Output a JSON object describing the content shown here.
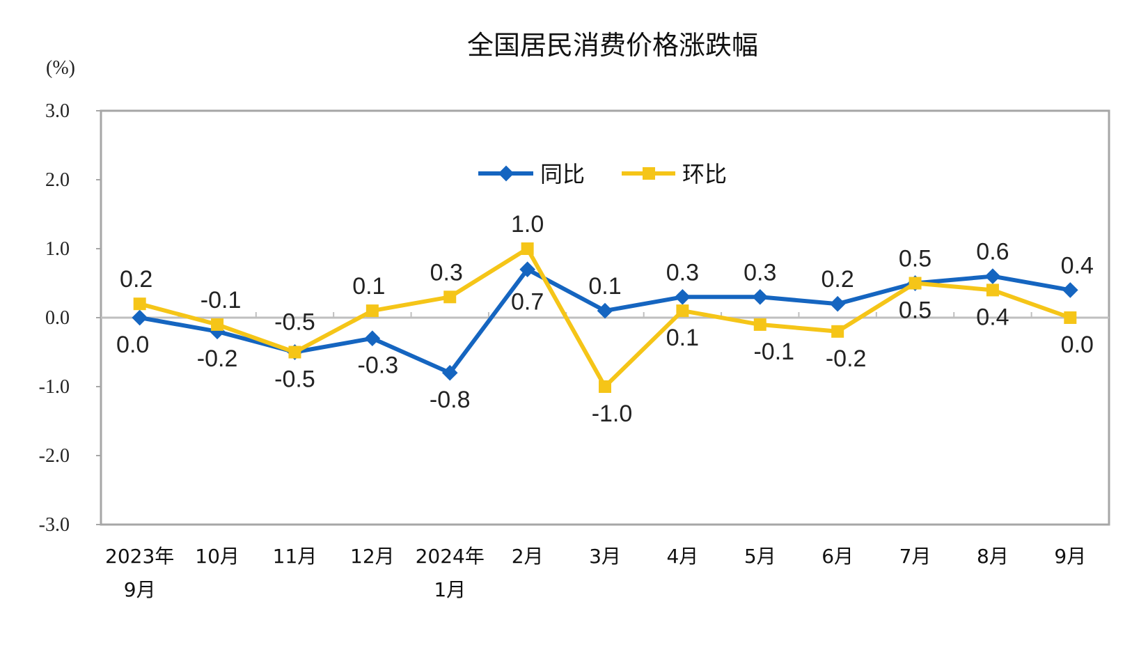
{
  "chart_data": {
    "type": "line",
    "title": "全国居民消费价格涨跌幅",
    "ylabel": "(%)",
    "ylim": [
      -3.0,
      3.0
    ],
    "yticks": [
      "3.0",
      "2.0",
      "1.0",
      "0.0",
      "-1.0",
      "-2.0",
      "-3.0"
    ],
    "categories": [
      [
        "2023年",
        "9月"
      ],
      [
        "10月"
      ],
      [
        "11月"
      ],
      [
        "12月"
      ],
      [
        "2024年",
        "1月"
      ],
      [
        "2月"
      ],
      [
        "3月"
      ],
      [
        "4月"
      ],
      [
        "5月"
      ],
      [
        "6月"
      ],
      [
        "7月"
      ],
      [
        "8月"
      ],
      [
        "9月"
      ]
    ],
    "series": [
      {
        "name": "同比",
        "color": "#1565C0",
        "marker": "diamond",
        "values": [
          0.0,
          -0.2,
          -0.5,
          -0.3,
          -0.8,
          0.7,
          0.1,
          0.3,
          0.3,
          0.2,
          0.5,
          0.6,
          0.4
        ],
        "labels": [
          "0.0",
          "-0.2",
          "-0.5",
          "-0.3",
          "-0.8",
          "0.7",
          "0.1",
          "0.3",
          "0.3",
          "0.2",
          "0.5",
          "0.6",
          "0.4"
        ]
      },
      {
        "name": "环比",
        "color": "#F5C518",
        "marker": "square",
        "values": [
          0.2,
          -0.1,
          -0.5,
          0.1,
          0.3,
          1.0,
          -1.0,
          0.1,
          -0.1,
          -0.2,
          0.5,
          0.4,
          0.0
        ],
        "labels": [
          "0.2",
          "-0.1",
          "-0.5",
          "0.1",
          "0.3",
          "1.0",
          "-1.0",
          "0.1",
          "-0.1",
          "-0.2",
          "0.5",
          "0.4",
          "0.0"
        ]
      }
    ],
    "legend": "top-center",
    "grid": false
  }
}
